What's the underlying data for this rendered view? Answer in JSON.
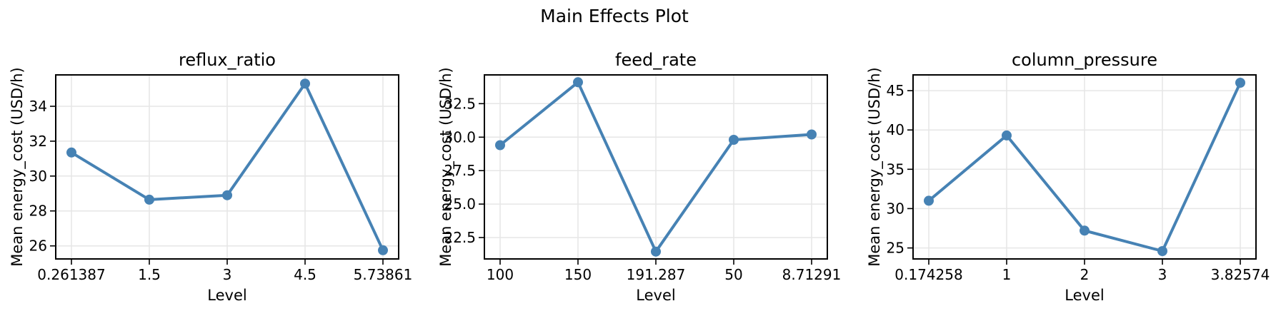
{
  "figure": {
    "suptitle": "Main Effects Plot",
    "background": "#ffffff",
    "accent_color": "#4682B4",
    "grid_color": "#e6e6e6",
    "spine_color": "#000000",
    "text_color": "#000000"
  },
  "chart_data": [
    {
      "type": "line",
      "title": "reflux_ratio",
      "xlabel": "Level",
      "ylabel": "Mean energy_cost (USD/h)",
      "categories": [
        "0.261387",
        "1.5",
        "3",
        "4.5",
        "5.73861"
      ],
      "values": [
        31.35,
        28.65,
        28.9,
        35.3,
        25.75
      ],
      "yticks": [
        26,
        28,
        30,
        32,
        34
      ],
      "ytick_labels": [
        "26",
        "28",
        "30",
        "32",
        "34"
      ],
      "ylim": [
        25.25,
        35.8
      ],
      "grid": true,
      "legend": "none"
    },
    {
      "type": "line",
      "title": "feed_rate",
      "xlabel": "Level",
      "ylabel": "Mean energy_cost (USD/h)",
      "categories": [
        "100",
        "150",
        "191.287",
        "50",
        "8.71291"
      ],
      "values": [
        29.4,
        34.1,
        21.45,
        29.8,
        30.2
      ],
      "yticks": [
        22.5,
        25.0,
        27.5,
        30.0,
        32.5
      ],
      "ytick_labels": [
        "22.5",
        "25.0",
        "27.5",
        "30.0",
        "32.5"
      ],
      "ylim": [
        20.9,
        34.65
      ],
      "grid": true,
      "legend": "none"
    },
    {
      "type": "line",
      "title": "column_pressure",
      "xlabel": "Level",
      "ylabel": "Mean energy_cost (USD/h)",
      "categories": [
        "0.174258",
        "1",
        "2",
        "3",
        "3.82574"
      ],
      "values": [
        31.0,
        39.3,
        27.2,
        24.6,
        46.0
      ],
      "yticks": [
        25,
        30,
        35,
        40,
        45
      ],
      "ytick_labels": [
        "25",
        "30",
        "35",
        "40",
        "45"
      ],
      "ylim": [
        23.6,
        47.0
      ],
      "grid": true,
      "legend": "none"
    }
  ]
}
